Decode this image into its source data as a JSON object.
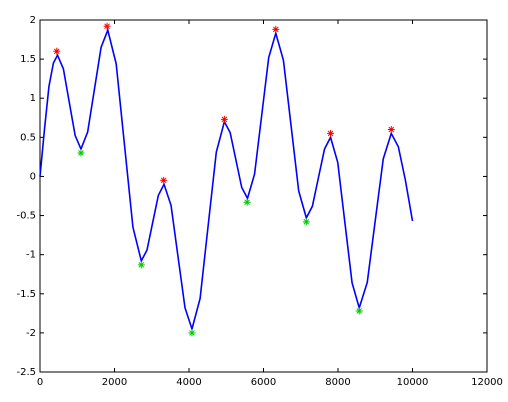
{
  "chart_data": {
    "type": "line",
    "xlim": [
      0,
      12000
    ],
    "xticks": [
      0,
      2000,
      4000,
      6000,
      8000,
      10000,
      12000
    ],
    "ylim": [
      -2.5,
      2
    ],
    "yticks": [
      -2.5,
      -2,
      -1.5,
      -1,
      -0.5,
      0,
      0.5,
      1,
      1.5,
      2
    ],
    "grid": false,
    "series": [
      {
        "color": "#0000ff",
        "marker": "none",
        "x": [
          0,
          120,
          240,
          360,
          470,
          628,
          785,
          943,
          1100,
          1280,
          1460,
          1640,
          1820,
          2045,
          2270,
          2495,
          2720,
          2873,
          3025,
          3178,
          3330,
          3518,
          3705,
          3893,
          4080,
          4298,
          4515,
          4733,
          4950,
          5105,
          5260,
          5415,
          5570,
          5760,
          5950,
          6140,
          6330,
          6535,
          6740,
          6945,
          7150,
          7313,
          7475,
          7638,
          7800,
          7993,
          8185,
          8378,
          8570,
          8785,
          9000,
          9215,
          9430,
          9620,
          9810,
          10000
        ],
        "values": [
          0,
          0.6,
          1.15,
          1.45,
          1.55,
          1.375,
          0.95,
          0.525,
          0.35,
          0.57,
          1.11,
          1.65,
          1.87,
          1.44,
          0.395,
          -0.65,
          -1.08,
          -0.94,
          -0.59,
          -0.24,
          -0.1,
          -0.37,
          -1.025,
          -1.68,
          -1.95,
          -1.56,
          -0.625,
          0.31,
          0.7,
          0.56,
          0.21,
          -0.14,
          -0.28,
          0.03,
          0.775,
          1.52,
          1.83,
          1.485,
          0.65,
          -0.185,
          -0.53,
          -0.38,
          -0.015,
          0.35,
          0.5,
          0.18,
          -0.59,
          -1.36,
          -1.68,
          -1.355,
          -0.565,
          0.225,
          0.55,
          0.38,
          -0.05,
          -0.57
        ]
      },
      {
        "color": "#ff0000",
        "marker": "*",
        "x": [
          450,
          1800,
          3320,
          4950,
          6330,
          7800,
          9430
        ],
        "values": [
          1.6,
          1.92,
          -0.05,
          0.73,
          1.88,
          0.55,
          0.6
        ]
      },
      {
        "color": "#00cc00",
        "marker": "*",
        "x": [
          1100,
          2720,
          4080,
          5560,
          7150,
          8570
        ],
        "values": [
          0.3,
          -1.13,
          -2.0,
          -0.33,
          -0.58,
          -1.72
        ]
      }
    ]
  }
}
